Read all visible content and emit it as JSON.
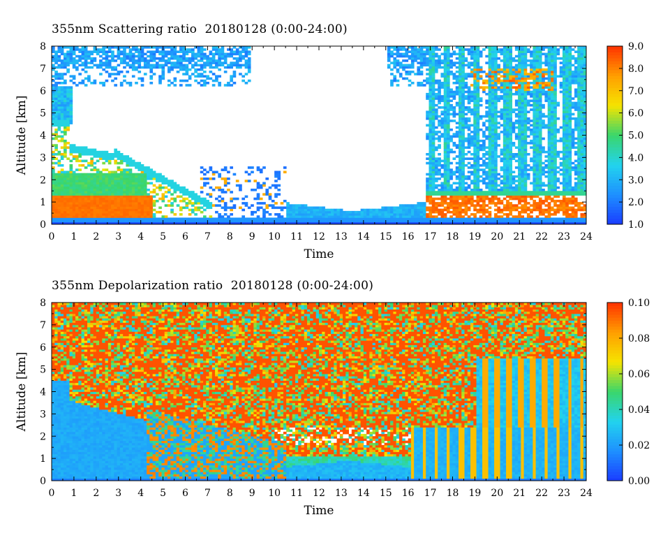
{
  "chart_data": [
    {
      "type": "heatmap",
      "title": "355nm Scattering ratio  20180128 (0:00-24:00)",
      "xlabel": "Time",
      "ylabel": "Altitude [km]",
      "xlim": [
        0,
        24
      ],
      "ylim": [
        0,
        8
      ],
      "x_ticks": [
        "0",
        "1",
        "2",
        "3",
        "4",
        "5",
        "6",
        "7",
        "8",
        "9",
        "10",
        "11",
        "12",
        "13",
        "14",
        "15",
        "16",
        "17",
        "18",
        "19",
        "20",
        "21",
        "22",
        "23",
        "24"
      ],
      "y_ticks": [
        "0",
        "1",
        "2",
        "3",
        "4",
        "5",
        "6",
        "7",
        "8"
      ],
      "colorbar": {
        "min": 1.0,
        "max": 9.0,
        "ticks": [
          "1.0",
          "2.0",
          "3.0",
          "4.0",
          "5.0",
          "6.0",
          "7.0",
          "8.0",
          "9.0"
        ],
        "colormap": [
          "#1a3cff",
          "#1e90ff",
          "#22d3ee",
          "#3ad66b",
          "#f5e400",
          "#ff9e00",
          "#ff3300"
        ]
      },
      "grid": false
    },
    {
      "type": "heatmap",
      "title": "355nm Depolarization ratio  20180128 (0:00-24:00)",
      "xlabel": "Time",
      "ylabel": "Altitude [km]",
      "xlim": [
        0,
        24
      ],
      "ylim": [
        0,
        8
      ],
      "x_ticks": [
        "0",
        "1",
        "2",
        "3",
        "4",
        "5",
        "6",
        "7",
        "8",
        "9",
        "10",
        "11",
        "12",
        "13",
        "14",
        "15",
        "16",
        "17",
        "18",
        "19",
        "20",
        "21",
        "22",
        "23",
        "24"
      ],
      "y_ticks": [
        "0",
        "1",
        "2",
        "3",
        "4",
        "5",
        "6",
        "7",
        "8"
      ],
      "colorbar": {
        "min": 0.0,
        "max": 0.1,
        "ticks": [
          "0.00",
          "0.02",
          "0.04",
          "0.06",
          "0.08",
          "0.10"
        ],
        "colormap": [
          "#1a3cff",
          "#1e90ff",
          "#22d3ee",
          "#3ad66b",
          "#f5e400",
          "#ff9e00",
          "#ff3300"
        ]
      },
      "grid": false
    }
  ]
}
